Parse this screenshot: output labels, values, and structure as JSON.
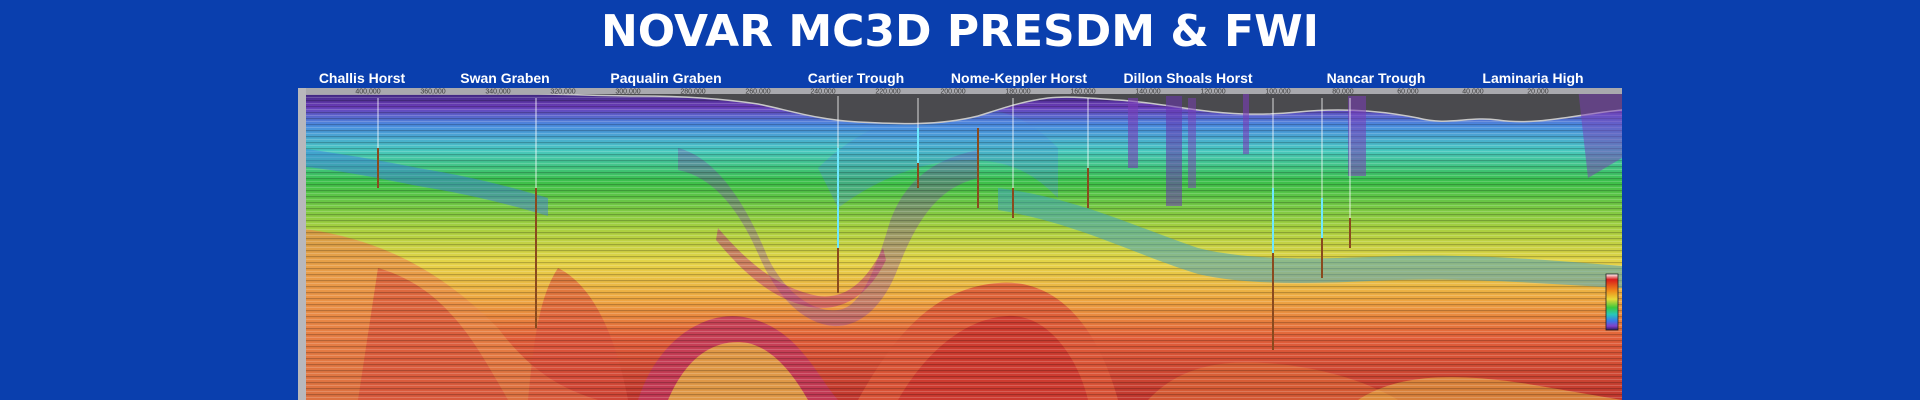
{
  "title": "NOVAR MC3D PRESDM & FWI",
  "regions": [
    {
      "name": "Challis Horst"
    },
    {
      "name": "Swan Graben"
    },
    {
      "name": "Paqualin Graben"
    },
    {
      "name": "Cartier Trough"
    },
    {
      "name": "Nome-Keppler Horst"
    },
    {
      "name": "Dillon Shoals Horst"
    },
    {
      "name": "Nancar Trough"
    },
    {
      "name": "Laminaria High"
    }
  ],
  "distance_ticks": [
    "400,000",
    "360,000",
    "340,000",
    "320,000",
    "300,000",
    "280,000",
    "260,000",
    "240,000",
    "220,000",
    "200,000",
    "180,000",
    "160,000",
    "140,000",
    "120,000",
    "100,000",
    "80,000",
    "60,000",
    "40,000",
    "20,000"
  ],
  "colors": {
    "background": "#0a3fae",
    "title": "#ffffff",
    "water": "#4a4a4e",
    "seabed": "#c8c8c8",
    "velocity_scale": [
      "#ffffff",
      "#d81b1b",
      "#f08a1a",
      "#e8d838",
      "#3cc83c",
      "#28c8b8",
      "#3a78e8",
      "#8040c8",
      "#2a1a60"
    ]
  },
  "section": {
    "type": "seismic-depth-section",
    "icon": "velocity-colorbar-icon"
  }
}
